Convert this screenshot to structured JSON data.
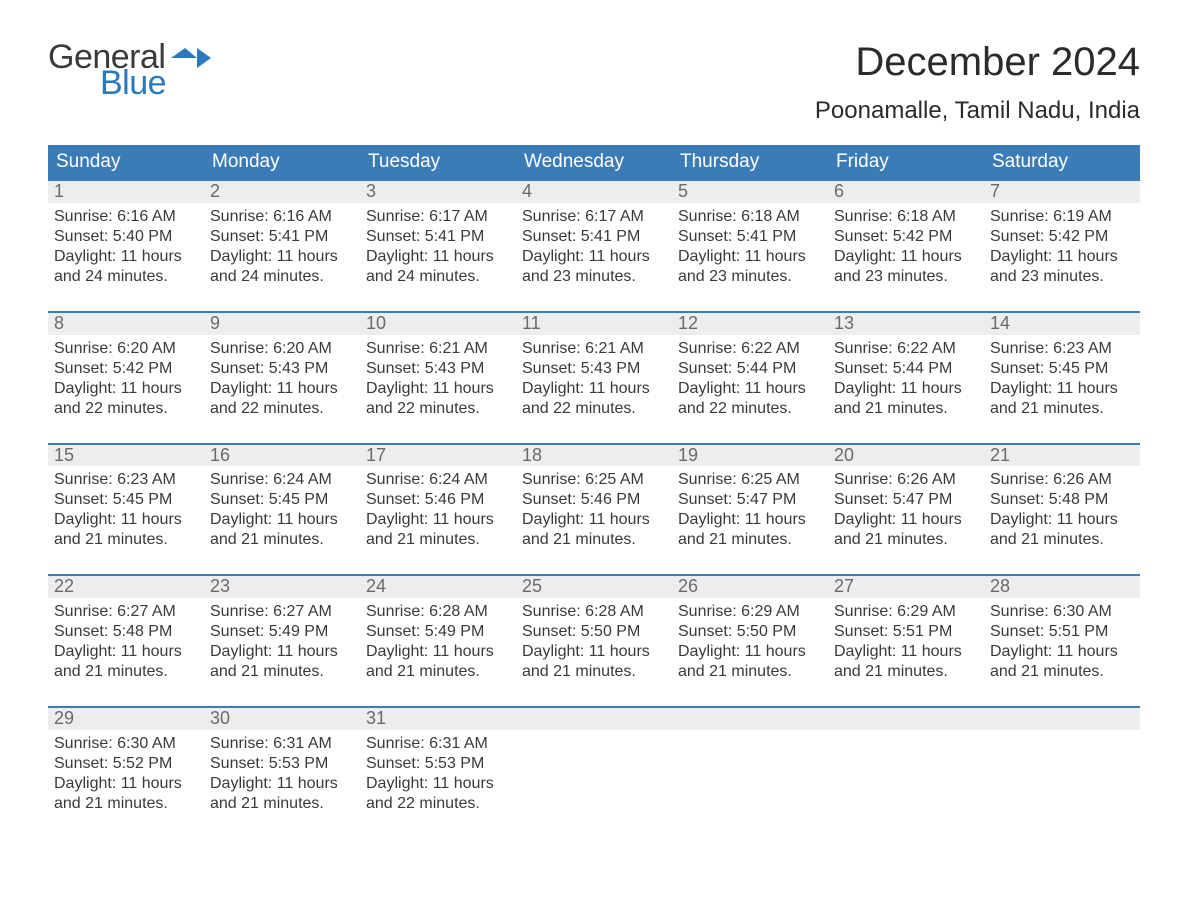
{
  "brand": {
    "word1": "General",
    "word2": "Blue",
    "flag_color": "#2a78bd"
  },
  "header": {
    "title": "December 2024",
    "location": "Poonamalle, Tamil Nadu, India"
  },
  "styling": {
    "header_bg": "#3b7cb8",
    "date_row_bg": "#ededed",
    "week_border_color": "#3b7cb8",
    "page_bg": "#ffffff",
    "text_color": "#333333",
    "title_fontsize_pt": 30,
    "location_fontsize_pt": 18,
    "dayname_fontsize_pt": 14,
    "body_fontsize_pt": 12,
    "columns": 7
  },
  "daynames": [
    "Sunday",
    "Monday",
    "Tuesday",
    "Wednesday",
    "Thursday",
    "Friday",
    "Saturday"
  ],
  "weeks": [
    {
      "days": [
        {
          "num": "1",
          "sunrise": "Sunrise: 6:16 AM",
          "sunset": "Sunset: 5:40 PM",
          "daylight1": "Daylight: 11 hours",
          "daylight2": "and 24 minutes."
        },
        {
          "num": "2",
          "sunrise": "Sunrise: 6:16 AM",
          "sunset": "Sunset: 5:41 PM",
          "daylight1": "Daylight: 11 hours",
          "daylight2": "and 24 minutes."
        },
        {
          "num": "3",
          "sunrise": "Sunrise: 6:17 AM",
          "sunset": "Sunset: 5:41 PM",
          "daylight1": "Daylight: 11 hours",
          "daylight2": "and 24 minutes."
        },
        {
          "num": "4",
          "sunrise": "Sunrise: 6:17 AM",
          "sunset": "Sunset: 5:41 PM",
          "daylight1": "Daylight: 11 hours",
          "daylight2": "and 23 minutes."
        },
        {
          "num": "5",
          "sunrise": "Sunrise: 6:18 AM",
          "sunset": "Sunset: 5:41 PM",
          "daylight1": "Daylight: 11 hours",
          "daylight2": "and 23 minutes."
        },
        {
          "num": "6",
          "sunrise": "Sunrise: 6:18 AM",
          "sunset": "Sunset: 5:42 PM",
          "daylight1": "Daylight: 11 hours",
          "daylight2": "and 23 minutes."
        },
        {
          "num": "7",
          "sunrise": "Sunrise: 6:19 AM",
          "sunset": "Sunset: 5:42 PM",
          "daylight1": "Daylight: 11 hours",
          "daylight2": "and 23 minutes."
        }
      ]
    },
    {
      "days": [
        {
          "num": "8",
          "sunrise": "Sunrise: 6:20 AM",
          "sunset": "Sunset: 5:42 PM",
          "daylight1": "Daylight: 11 hours",
          "daylight2": "and 22 minutes."
        },
        {
          "num": "9",
          "sunrise": "Sunrise: 6:20 AM",
          "sunset": "Sunset: 5:43 PM",
          "daylight1": "Daylight: 11 hours",
          "daylight2": "and 22 minutes."
        },
        {
          "num": "10",
          "sunrise": "Sunrise: 6:21 AM",
          "sunset": "Sunset: 5:43 PM",
          "daylight1": "Daylight: 11 hours",
          "daylight2": "and 22 minutes."
        },
        {
          "num": "11",
          "sunrise": "Sunrise: 6:21 AM",
          "sunset": "Sunset: 5:43 PM",
          "daylight1": "Daylight: 11 hours",
          "daylight2": "and 22 minutes."
        },
        {
          "num": "12",
          "sunrise": "Sunrise: 6:22 AM",
          "sunset": "Sunset: 5:44 PM",
          "daylight1": "Daylight: 11 hours",
          "daylight2": "and 22 minutes."
        },
        {
          "num": "13",
          "sunrise": "Sunrise: 6:22 AM",
          "sunset": "Sunset: 5:44 PM",
          "daylight1": "Daylight: 11 hours",
          "daylight2": "and 21 minutes."
        },
        {
          "num": "14",
          "sunrise": "Sunrise: 6:23 AM",
          "sunset": "Sunset: 5:45 PM",
          "daylight1": "Daylight: 11 hours",
          "daylight2": "and 21 minutes."
        }
      ]
    },
    {
      "days": [
        {
          "num": "15",
          "sunrise": "Sunrise: 6:23 AM",
          "sunset": "Sunset: 5:45 PM",
          "daylight1": "Daylight: 11 hours",
          "daylight2": "and 21 minutes."
        },
        {
          "num": "16",
          "sunrise": "Sunrise: 6:24 AM",
          "sunset": "Sunset: 5:45 PM",
          "daylight1": "Daylight: 11 hours",
          "daylight2": "and 21 minutes."
        },
        {
          "num": "17",
          "sunrise": "Sunrise: 6:24 AM",
          "sunset": "Sunset: 5:46 PM",
          "daylight1": "Daylight: 11 hours",
          "daylight2": "and 21 minutes."
        },
        {
          "num": "18",
          "sunrise": "Sunrise: 6:25 AM",
          "sunset": "Sunset: 5:46 PM",
          "daylight1": "Daylight: 11 hours",
          "daylight2": "and 21 minutes."
        },
        {
          "num": "19",
          "sunrise": "Sunrise: 6:25 AM",
          "sunset": "Sunset: 5:47 PM",
          "daylight1": "Daylight: 11 hours",
          "daylight2": "and 21 minutes."
        },
        {
          "num": "20",
          "sunrise": "Sunrise: 6:26 AM",
          "sunset": "Sunset: 5:47 PM",
          "daylight1": "Daylight: 11 hours",
          "daylight2": "and 21 minutes."
        },
        {
          "num": "21",
          "sunrise": "Sunrise: 6:26 AM",
          "sunset": "Sunset: 5:48 PM",
          "daylight1": "Daylight: 11 hours",
          "daylight2": "and 21 minutes."
        }
      ]
    },
    {
      "days": [
        {
          "num": "22",
          "sunrise": "Sunrise: 6:27 AM",
          "sunset": "Sunset: 5:48 PM",
          "daylight1": "Daylight: 11 hours",
          "daylight2": "and 21 minutes."
        },
        {
          "num": "23",
          "sunrise": "Sunrise: 6:27 AM",
          "sunset": "Sunset: 5:49 PM",
          "daylight1": "Daylight: 11 hours",
          "daylight2": "and 21 minutes."
        },
        {
          "num": "24",
          "sunrise": "Sunrise: 6:28 AM",
          "sunset": "Sunset: 5:49 PM",
          "daylight1": "Daylight: 11 hours",
          "daylight2": "and 21 minutes."
        },
        {
          "num": "25",
          "sunrise": "Sunrise: 6:28 AM",
          "sunset": "Sunset: 5:50 PM",
          "daylight1": "Daylight: 11 hours",
          "daylight2": "and 21 minutes."
        },
        {
          "num": "26",
          "sunrise": "Sunrise: 6:29 AM",
          "sunset": "Sunset: 5:50 PM",
          "daylight1": "Daylight: 11 hours",
          "daylight2": "and 21 minutes."
        },
        {
          "num": "27",
          "sunrise": "Sunrise: 6:29 AM",
          "sunset": "Sunset: 5:51 PM",
          "daylight1": "Daylight: 11 hours",
          "daylight2": "and 21 minutes."
        },
        {
          "num": "28",
          "sunrise": "Sunrise: 6:30 AM",
          "sunset": "Sunset: 5:51 PM",
          "daylight1": "Daylight: 11 hours",
          "daylight2": "and 21 minutes."
        }
      ]
    },
    {
      "days": [
        {
          "num": "29",
          "sunrise": "Sunrise: 6:30 AM",
          "sunset": "Sunset: 5:52 PM",
          "daylight1": "Daylight: 11 hours",
          "daylight2": "and 21 minutes."
        },
        {
          "num": "30",
          "sunrise": "Sunrise: 6:31 AM",
          "sunset": "Sunset: 5:53 PM",
          "daylight1": "Daylight: 11 hours",
          "daylight2": "and 21 minutes."
        },
        {
          "num": "31",
          "sunrise": "Sunrise: 6:31 AM",
          "sunset": "Sunset: 5:53 PM",
          "daylight1": "Daylight: 11 hours",
          "daylight2": "and 22 minutes."
        },
        {
          "empty": true
        },
        {
          "empty": true
        },
        {
          "empty": true
        },
        {
          "empty": true
        }
      ]
    }
  ]
}
